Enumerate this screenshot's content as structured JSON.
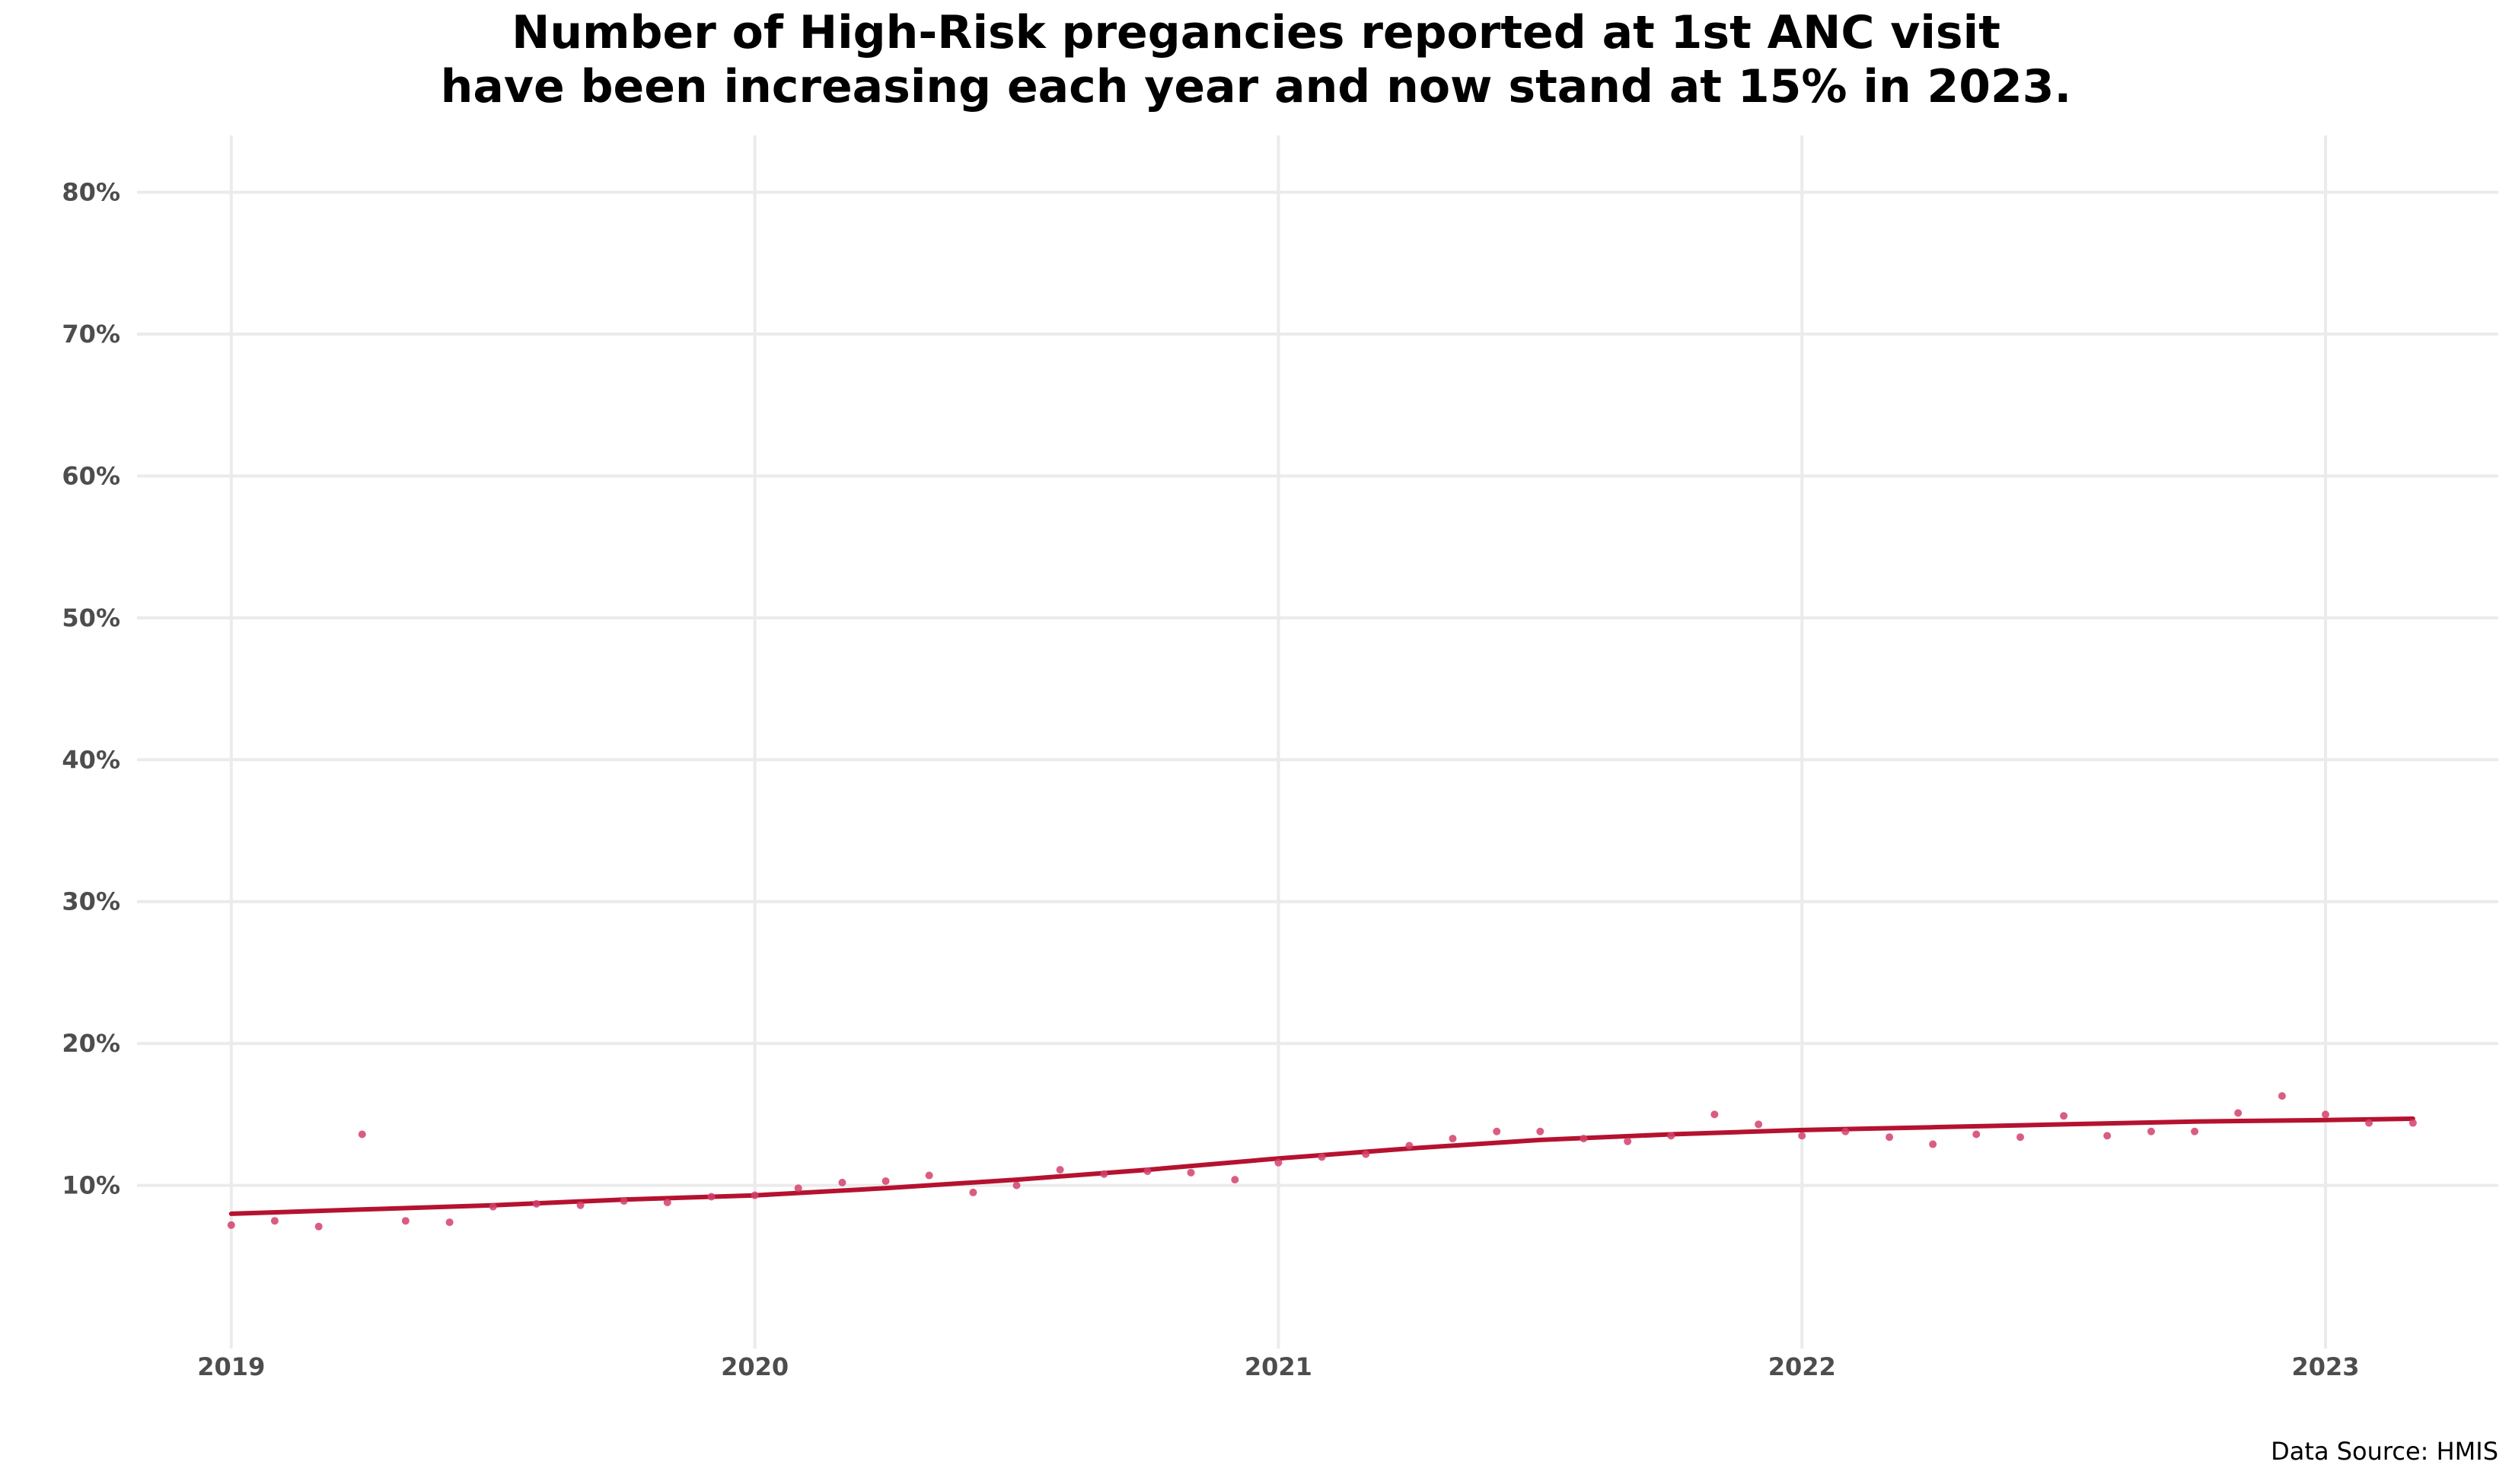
{
  "chart_data": {
    "type": "scatter",
    "title": "Number of High-Risk pregancies reported at 1st ANC visit",
    "subtitle": "have been increasing each year and now stand at 15% in 2023.",
    "xlabel": "",
    "ylabel": "",
    "x_ticks": [
      2019,
      2020,
      2021,
      2022,
      2023
    ],
    "x_tick_labels": [
      "2019",
      "2020",
      "2021",
      "2022",
      "2023"
    ],
    "y_tick_values": [
      10,
      20,
      30,
      40,
      50,
      60,
      70,
      80
    ],
    "y_tick_labels": [
      "10%",
      "20%",
      "30%",
      "40%",
      "50%",
      "60%",
      "70%",
      "80%"
    ],
    "xlim": [
      2018.82,
      2023.33
    ],
    "ylim": [
      -1.5,
      84
    ],
    "grid": true,
    "legend": "none",
    "colors": {
      "points": "#d4416b",
      "trend": "#b5122f",
      "grid": "#ebebeb"
    },
    "series": [
      {
        "kind": "points",
        "x": [
          2019.0,
          2019.083,
          2019.167,
          2019.25,
          2019.333,
          2019.417,
          2019.5,
          2019.583,
          2019.667,
          2019.75,
          2019.833,
          2019.917,
          2020.0,
          2020.083,
          2020.167,
          2020.25,
          2020.333,
          2020.417,
          2020.5,
          2020.583,
          2020.667,
          2020.75,
          2020.833,
          2020.917,
          2021.0,
          2021.083,
          2021.167,
          2021.25,
          2021.333,
          2021.417,
          2021.5,
          2021.583,
          2021.667,
          2021.75,
          2021.833,
          2021.917,
          2022.0,
          2022.083,
          2022.167,
          2022.25,
          2022.333,
          2022.417,
          2022.5,
          2022.583,
          2022.667,
          2022.75,
          2022.833,
          2022.917,
          2023.0,
          2023.083,
          2023.167
        ],
        "y": [
          7.2,
          7.5,
          7.1,
          13.6,
          7.5,
          7.4,
          8.5,
          8.7,
          8.6,
          8.9,
          8.8,
          9.2,
          9.3,
          9.8,
          10.2,
          10.3,
          10.7,
          9.5,
          10.0,
          11.1,
          10.8,
          11.0,
          10.9,
          10.4,
          11.6,
          12.0,
          12.2,
          12.8,
          13.3,
          13.8,
          13.8,
          13.3,
          13.1,
          13.5,
          15.0,
          14.3,
          13.5,
          13.8,
          13.4,
          12.9,
          13.6,
          13.4,
          14.9,
          13.5,
          13.8,
          13.8,
          15.1,
          16.3,
          15.0,
          14.4,
          14.4
        ]
      },
      {
        "kind": "trend",
        "x": [
          2019.0,
          2019.25,
          2019.5,
          2019.75,
          2020.0,
          2020.25,
          2020.5,
          2020.75,
          2021.0,
          2021.25,
          2021.5,
          2021.75,
          2022.0,
          2022.25,
          2022.5,
          2022.75,
          2023.0,
          2023.167
        ],
        "y": [
          8.0,
          8.3,
          8.6,
          9.0,
          9.3,
          9.8,
          10.4,
          11.1,
          11.9,
          12.6,
          13.2,
          13.6,
          13.9,
          14.1,
          14.3,
          14.5,
          14.6,
          14.7
        ]
      }
    ]
  },
  "footer": {
    "source": "Data Source: HMIS"
  }
}
